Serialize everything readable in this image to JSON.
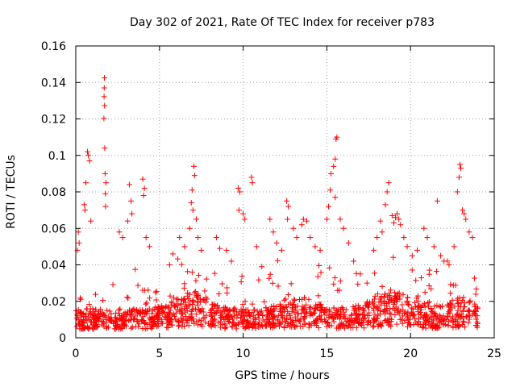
{
  "chart_data": {
    "type": "scatter",
    "title": "Day 302 of 2021, Rate Of TEC Index for receiver p783",
    "xlabel": "GPS time / hours",
    "ylabel": "ROTI / TECUs",
    "xlim": [
      0,
      25
    ],
    "ylim": [
      0,
      0.16
    ],
    "x_ticks": [
      0,
      5,
      10,
      15,
      20,
      25
    ],
    "y_ticks": [
      0,
      0.02,
      0.04,
      0.06,
      0.08,
      0.1,
      0.12,
      0.14,
      0.16
    ],
    "x_tick_labels": [
      "0",
      "5",
      "10",
      "15",
      "20",
      "25"
    ],
    "y_tick_labels": [
      "0",
      "0.02",
      "0.04",
      "0.06",
      "0.08",
      "0.1",
      "0.12",
      "0.14",
      "0.16"
    ],
    "grid": true,
    "marker": "+",
    "color": "#ff0000",
    "series": [
      {
        "name": "ROTI",
        "points": [
          [
            1.71,
            0.1425
          ],
          [
            1.7,
            0.137
          ],
          [
            1.69,
            0.1322
          ],
          [
            1.72,
            0.1273
          ],
          [
            1.68,
            0.1203
          ],
          [
            1.73,
            0.104
          ],
          [
            1.75,
            0.09
          ],
          [
            1.8,
            0.085
          ],
          [
            1.77,
            0.079
          ],
          [
            1.78,
            0.072
          ],
          [
            0.7,
            0.102
          ],
          [
            0.75,
            0.1
          ],
          [
            0.82,
            0.097
          ],
          [
            0.6,
            0.085
          ],
          [
            0.5,
            0.073
          ],
          [
            0.55,
            0.07
          ],
          [
            0.9,
            0.064
          ],
          [
            0.15,
            0.058
          ],
          [
            0.2,
            0.052
          ],
          [
            0.1,
            0.048
          ],
          [
            2.6,
            0.058
          ],
          [
            2.8,
            0.055
          ],
          [
            3.2,
            0.084
          ],
          [
            3.3,
            0.075
          ],
          [
            3.35,
            0.068
          ],
          [
            3.1,
            0.064
          ],
          [
            4.0,
            0.087
          ],
          [
            4.1,
            0.082
          ],
          [
            4.05,
            0.078
          ],
          [
            4.2,
            0.055
          ],
          [
            4.4,
            0.05
          ],
          [
            5.6,
            0.04
          ],
          [
            5.8,
            0.046
          ],
          [
            6.2,
            0.055
          ],
          [
            6.5,
            0.05
          ],
          [
            6.8,
            0.06
          ],
          [
            6.9,
            0.074
          ],
          [
            6.95,
            0.081
          ],
          [
            7.05,
            0.094
          ],
          [
            7.1,
            0.089
          ],
          [
            7.0,
            0.07
          ],
          [
            7.2,
            0.065
          ],
          [
            7.3,
            0.055
          ],
          [
            7.5,
            0.048
          ],
          [
            8.4,
            0.055
          ],
          [
            8.6,
            0.049
          ],
          [
            9.0,
            0.048
          ],
          [
            9.3,
            0.042
          ],
          [
            9.7,
            0.082
          ],
          [
            9.8,
            0.08
          ],
          [
            9.75,
            0.07
          ],
          [
            10.0,
            0.068
          ],
          [
            10.1,
            0.065
          ],
          [
            10.5,
            0.088
          ],
          [
            10.55,
            0.085
          ],
          [
            10.8,
            0.05
          ],
          [
            11.6,
            0.065
          ],
          [
            11.8,
            0.058
          ],
          [
            12.0,
            0.052
          ],
          [
            12.3,
            0.048
          ],
          [
            12.6,
            0.075
          ],
          [
            12.7,
            0.072
          ],
          [
            12.65,
            0.065
          ],
          [
            13.0,
            0.06
          ],
          [
            13.2,
            0.055
          ],
          [
            13.5,
            0.062
          ],
          [
            13.6,
            0.065
          ],
          [
            13.8,
            0.064
          ],
          [
            14.0,
            0.055
          ],
          [
            14.3,
            0.05
          ],
          [
            14.6,
            0.048
          ],
          [
            15.0,
            0.065
          ],
          [
            15.1,
            0.072
          ],
          [
            15.2,
            0.081
          ],
          [
            15.25,
            0.09
          ],
          [
            15.4,
            0.094
          ],
          [
            15.5,
            0.098
          ],
          [
            15.55,
            0.109
          ],
          [
            15.6,
            0.11
          ],
          [
            15.5,
            0.077
          ],
          [
            15.8,
            0.065
          ],
          [
            16.0,
            0.06
          ],
          [
            16.3,
            0.052
          ],
          [
            16.6,
            0.042
          ],
          [
            17.0,
            0.035
          ],
          [
            17.4,
            0.03
          ],
          [
            17.8,
            0.048
          ],
          [
            18.0,
            0.055
          ],
          [
            18.2,
            0.064
          ],
          [
            18.3,
            0.058
          ],
          [
            18.5,
            0.073
          ],
          [
            18.6,
            0.08
          ],
          [
            18.7,
            0.085
          ],
          [
            18.9,
            0.067
          ],
          [
            19.0,
            0.063
          ],
          [
            19.1,
            0.066
          ],
          [
            19.2,
            0.068
          ],
          [
            19.3,
            0.065
          ],
          [
            19.4,
            0.062
          ],
          [
            19.6,
            0.055
          ],
          [
            19.8,
            0.05
          ],
          [
            20.1,
            0.045
          ],
          [
            20.4,
            0.048
          ],
          [
            20.8,
            0.06
          ],
          [
            21.0,
            0.055
          ],
          [
            21.4,
            0.05
          ],
          [
            21.6,
            0.075
          ],
          [
            21.8,
            0.045
          ],
          [
            22.0,
            0.042
          ],
          [
            22.3,
            0.04
          ],
          [
            22.6,
            0.05
          ],
          [
            22.8,
            0.08
          ],
          [
            22.9,
            0.088
          ],
          [
            22.95,
            0.095
          ],
          [
            23.0,
            0.093
          ],
          [
            23.1,
            0.07
          ],
          [
            23.2,
            0.068
          ],
          [
            23.3,
            0.065
          ],
          [
            23.5,
            0.058
          ],
          [
            23.7,
            0.055
          ]
        ]
      }
    ]
  }
}
